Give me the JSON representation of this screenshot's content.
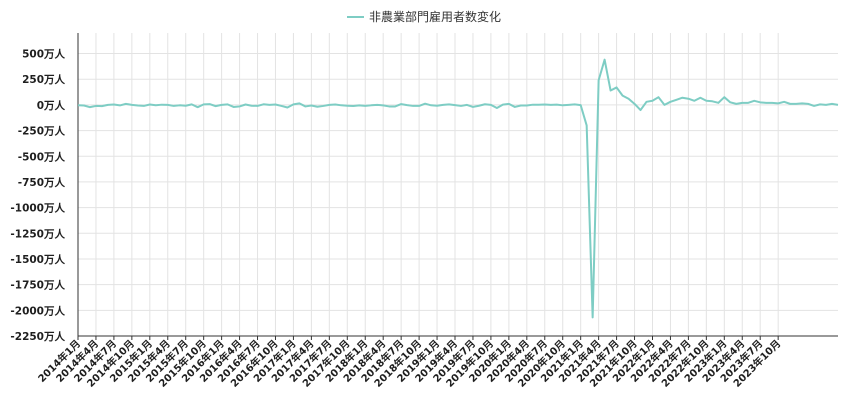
{
  "chart_data": {
    "type": "line",
    "title": "",
    "xlabel": "",
    "ylabel": "",
    "legend_position": "top-center",
    "grid": true,
    "ylim": [
      -2250,
      700
    ],
    "yticks": [
      500,
      250,
      0,
      -250,
      -500,
      -750,
      -1000,
      -1250,
      -1500,
      -1750,
      -2000,
      -2250
    ],
    "ytick_labels": [
      "500万人",
      "250万人",
      "0万人",
      "-250万人",
      "-500万人",
      "-750万人",
      "-1000万人",
      "-1250万人",
      "-1500万人",
      "-1750万人",
      "-2000万人",
      "-2250万人"
    ],
    "xtick_labels": [
      "2014年1月",
      "2014年4月",
      "2014年7月",
      "2014年10月",
      "2015年1月",
      "2015年4月",
      "2015年7月",
      "2015年10月",
      "2016年1月",
      "2016年4月",
      "2016年7月",
      "2016年10月",
      "2017年1月",
      "2017年4月",
      "2017年7月",
      "2017年10月",
      "2018年1月",
      "2018年4月",
      "2018年7月",
      "2018年10月",
      "2019年1月",
      "2019年4月",
      "2019年7月",
      "2019年10月",
      "2020年1月",
      "2020年4月",
      "2020年7月",
      "2020年10月",
      "2021年1月",
      "2021年4月",
      "2021年7月",
      "2021年10月",
      "2022年1月",
      "2022年4月",
      "2022年7月",
      "2022年10月",
      "2023年1月",
      "2023年4月",
      "2023年7月",
      "2023年10月"
    ],
    "series": [
      {
        "name": "非農業部門雇用者数変化",
        "color": "#7ecdc4",
        "start": "2014年1月",
        "values": [
          -3,
          -6,
          -22,
          -10,
          -12,
          0,
          4,
          -5,
          10,
          0,
          -6,
          -10,
          4,
          -3,
          2,
          0,
          -10,
          -4,
          -8,
          5,
          -22,
          5,
          8,
          -12,
          0,
          5,
          -20,
          -15,
          4,
          -8,
          -10,
          6,
          0,
          4,
          -10,
          -25,
          5,
          15,
          -15,
          -6,
          -18,
          -10,
          0,
          4,
          -4,
          -8,
          -11,
          -5,
          -10,
          -4,
          0,
          -5,
          -15,
          -15,
          8,
          -2,
          -10,
          -10,
          12,
          -4,
          -8,
          0,
          5,
          -2,
          -10,
          0,
          -20,
          -8,
          6,
          0,
          -30,
          3,
          10,
          -20,
          -6,
          -6,
          2,
          2,
          4,
          0,
          3,
          -4,
          0,
          5,
          -2,
          -200,
          -2069,
          240,
          440,
          140,
          170,
          90,
          60,
          10,
          -50,
          30,
          40,
          75,
          0,
          30,
          50,
          70,
          60,
          40,
          70,
          40,
          35,
          20,
          75,
          25,
          10,
          20,
          20,
          40,
          25,
          20,
          20,
          15,
          30,
          10,
          10,
          15,
          10,
          -10,
          5,
          0,
          10,
          0
        ]
      }
    ]
  }
}
